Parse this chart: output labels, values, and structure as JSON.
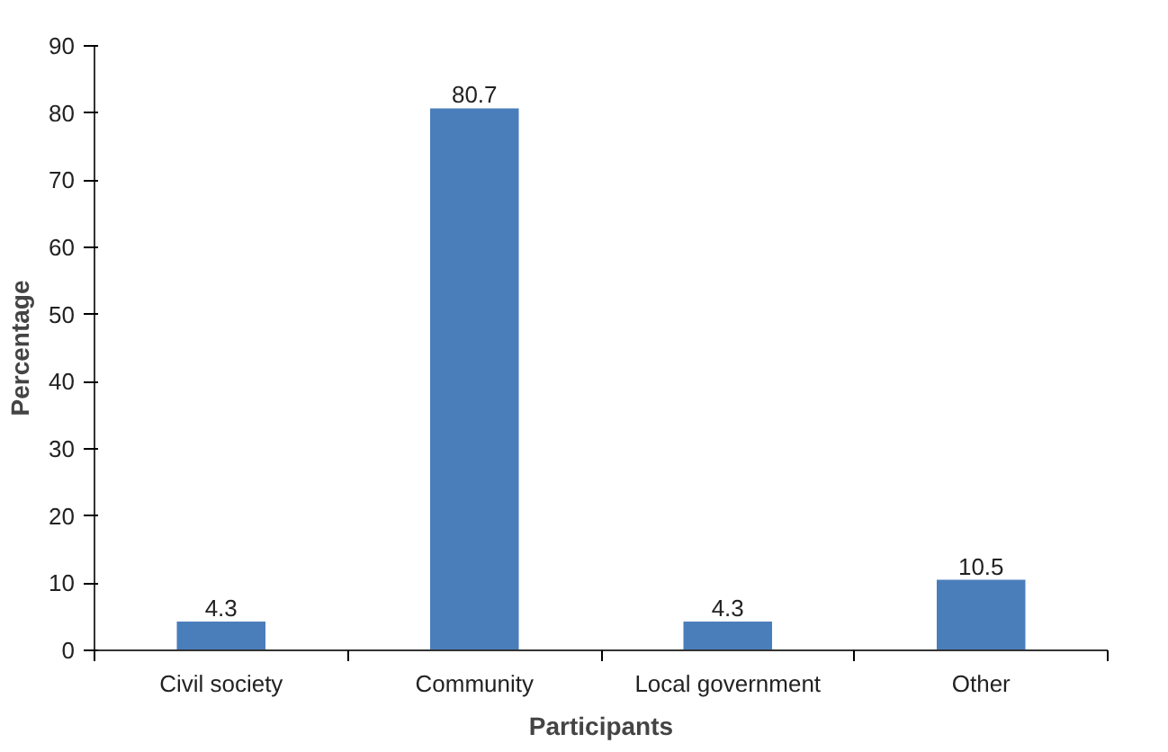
{
  "chart_data": {
    "type": "bar",
    "xlabel": "Participants",
    "ylabel": "Percentage",
    "categories": [
      "Civil society",
      "Community",
      "Local government",
      "Other"
    ],
    "values": [
      4.3,
      80.7,
      4.3,
      10.5
    ],
    "color": "#4a7ebb",
    "ylim": [
      0,
      90
    ],
    "yticks": [
      0,
      10,
      20,
      30,
      40,
      50,
      60,
      70,
      80,
      90
    ],
    "data_labels": true,
    "grid": false
  }
}
